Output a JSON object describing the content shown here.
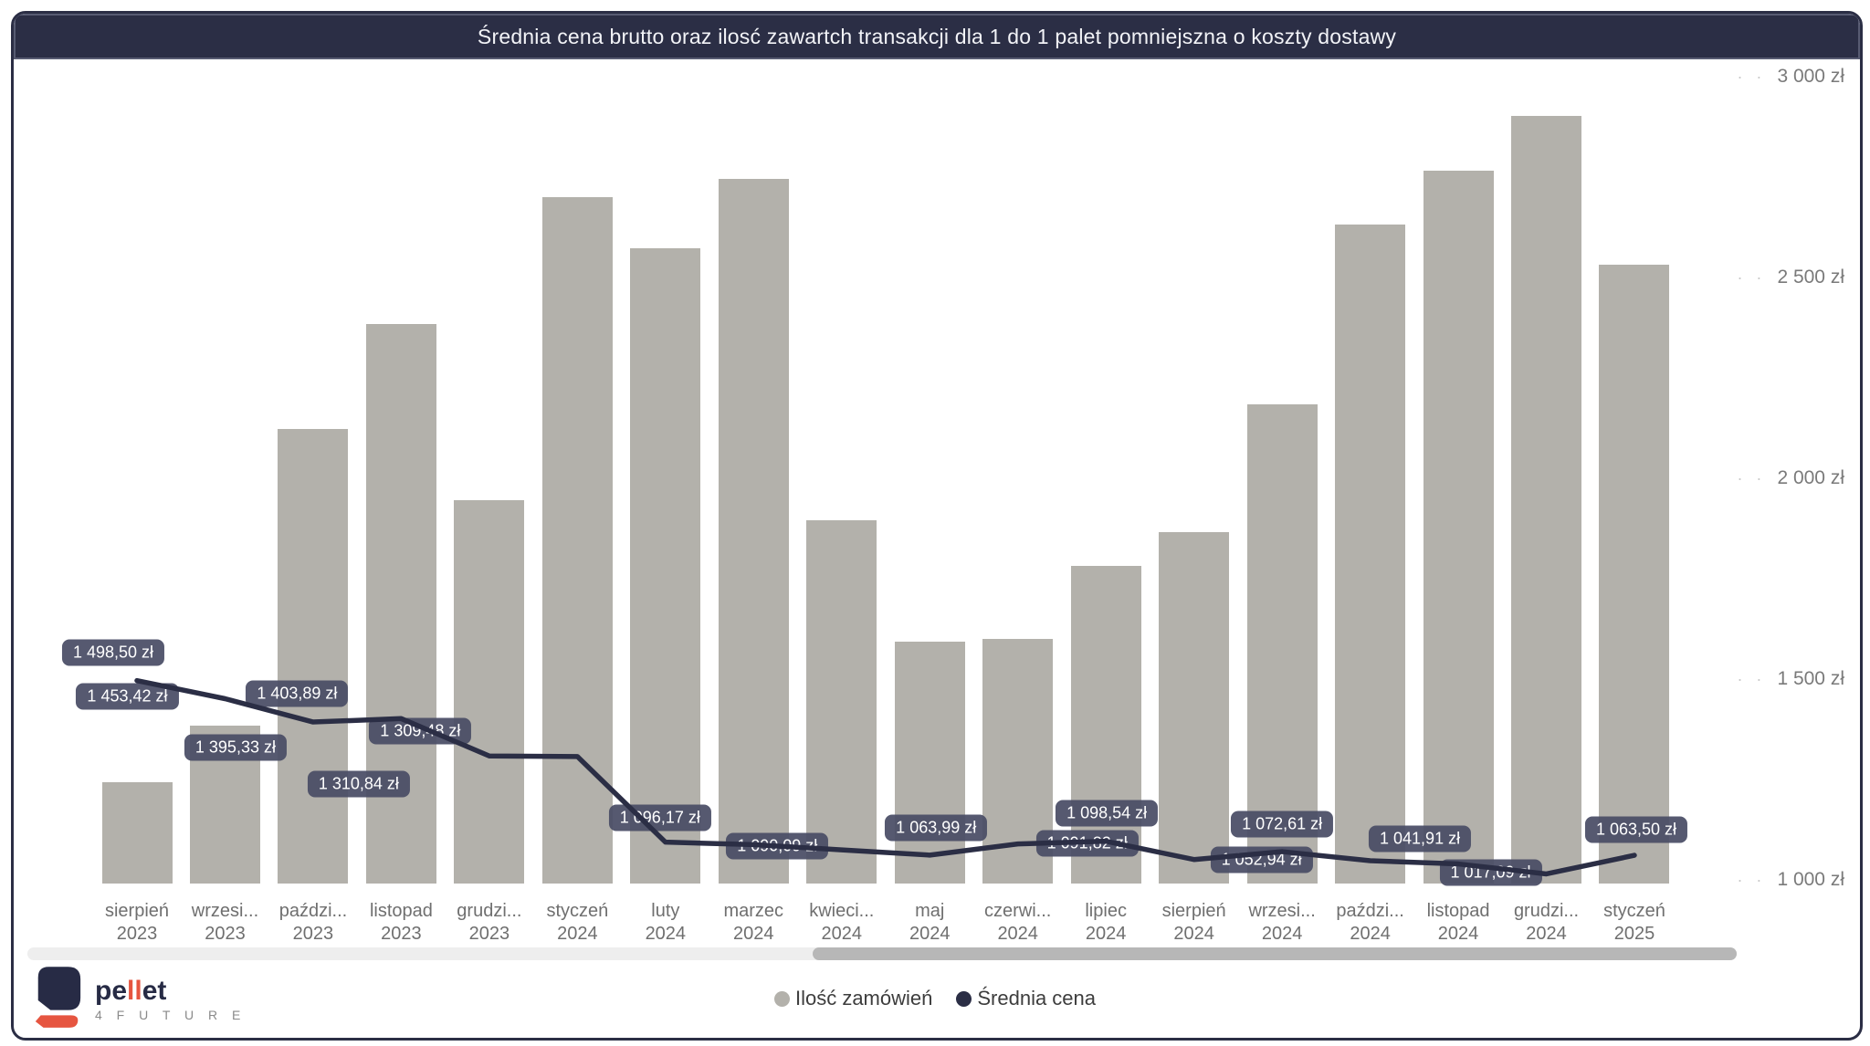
{
  "header": {
    "title": "Średnia cena brutto oraz ilosć zawartch transakcji dla 1 do 1 palet pomniejszna o koszty dostawy"
  },
  "y_axis": {
    "unit": "zł",
    "ticks": [
      "1 000 zł",
      "1 500 zł",
      "2 000 zł",
      "2 500 zł",
      "3 000 zł"
    ],
    "tick_values": [
      1000,
      1500,
      2000,
      2500,
      3000
    ]
  },
  "chart_data": {
    "type": "combo",
    "categories": [
      {
        "month": "sierpień",
        "year": "2023"
      },
      {
        "month": "wrzesi...",
        "year": "2023"
      },
      {
        "month": "paździ...",
        "year": "2023"
      },
      {
        "month": "listopad",
        "year": "2023"
      },
      {
        "month": "grudzi...",
        "year": "2023"
      },
      {
        "month": "styczeń",
        "year": "2024"
      },
      {
        "month": "luty",
        "year": "2024"
      },
      {
        "month": "marzec",
        "year": "2024"
      },
      {
        "month": "kwieci...",
        "year": "2024"
      },
      {
        "month": "maj",
        "year": "2024"
      },
      {
        "month": "czerwi...",
        "year": "2024"
      },
      {
        "month": "lipiec",
        "year": "2024"
      },
      {
        "month": "sierpień",
        "year": "2024"
      },
      {
        "month": "wrzesi...",
        "year": "2024"
      },
      {
        "month": "paździ...",
        "year": "2024"
      },
      {
        "month": "listopad",
        "year": "2024"
      },
      {
        "month": "grudzi...",
        "year": "2024"
      },
      {
        "month": "styczeń",
        "year": "2025"
      }
    ],
    "axis_range": [
      1000,
      3000
    ],
    "series": [
      {
        "name": "Ilość zamówień",
        "type": "bar",
        "color": "#b3b1ab",
        "values_note": "bar heights read against the right axis scale (no numeric labels shown in chart)",
        "values": [
          1245,
          1386,
          2125,
          2386,
          1948,
          2702,
          2575,
          2748,
          1898,
          1595,
          1602,
          1784,
          1868,
          2186,
          2634,
          2768,
          2905,
          2534
        ]
      },
      {
        "name": "Średnia cena",
        "type": "line",
        "color": "#2b2e45",
        "values": [
          1498.5,
          1453.42,
          1395.33,
          1403.89,
          1310.84,
          1309.48,
          1096.17,
          1090.09,
          1077.0,
          1063.99,
          1091.82,
          1098.54,
          1052.94,
          1072.61,
          1050.0,
          1041.91,
          1017.09,
          1063.5
        ],
        "point_labels": [
          "1 498,50 zł",
          "1 453,42 zł",
          "1 395,33 zł",
          "1 403,89 zł",
          "1 310,84 zł",
          "1 309,48 zł",
          "1 096,17 zł",
          "1 090,09 zł",
          null,
          "1 063,99 zł",
          "1 091,82 zł",
          "1 098,54 zł",
          "1 052,94 zł",
          "1 072,61 zł",
          null,
          "1 041,91 zł",
          "1 017,09 zł",
          "1 063,50 zł"
        ],
        "label_offsets": [
          [
            -26,
            -31
          ],
          [
            -107,
            -2
          ],
          [
            -85,
            28
          ],
          [
            -114,
            -27
          ],
          [
            -143,
            31
          ],
          [
            -172,
            -28
          ],
          [
            -6,
            -27
          ],
          [
            26,
            2
          ],
          null,
          [
            7,
            -30
          ],
          [
            76,
            -1
          ],
          [
            1,
            -31
          ],
          [
            74,
            0
          ],
          [
            0,
            -30
          ],
          null,
          [
            -42,
            -28
          ],
          [
            -61,
            -1
          ],
          [
            2,
            -28
          ]
        ]
      }
    ]
  },
  "legend": {
    "items": [
      {
        "label": "Ilość zamówień",
        "color": "#b3b1ab"
      },
      {
        "label": "Średnia cena",
        "color": "#2b2e45"
      }
    ]
  },
  "logo": {
    "brand_prefix": "pe",
    "brand_accent": "ll",
    "brand_suffix": "et",
    "subtitle": "4 F U T U R E"
  },
  "colors": {
    "navy": "#2b2e45",
    "bar_gray": "#b3b1ab",
    "label_box": "#494c65",
    "axis_text": "#7a7a7a",
    "accent_red": "#e65540"
  }
}
